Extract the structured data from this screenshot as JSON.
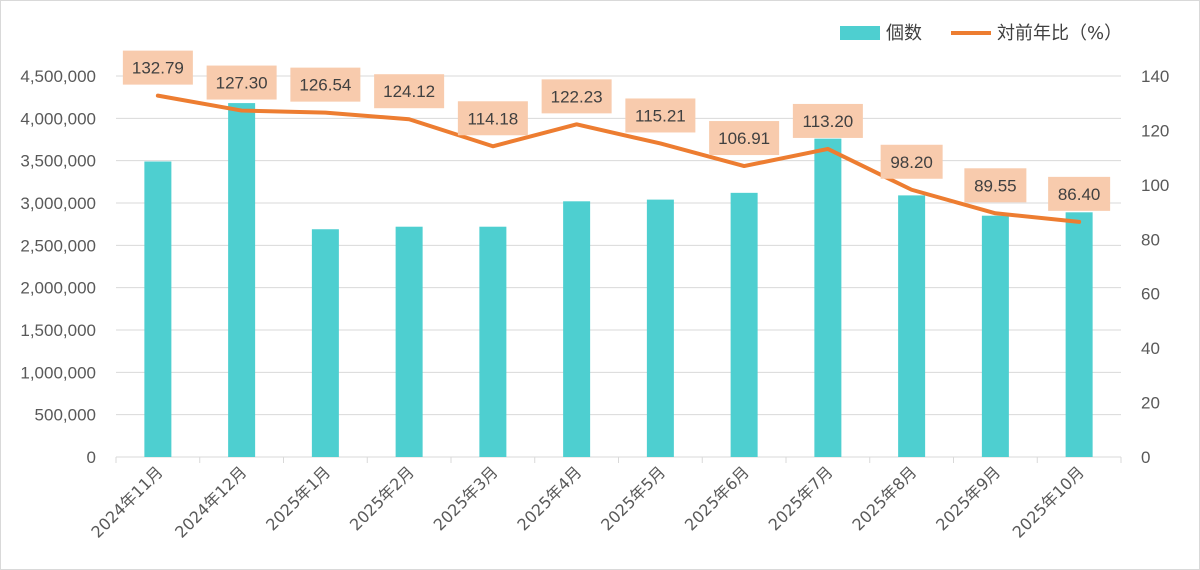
{
  "chart_data": {
    "type": "bar",
    "categories": [
      "2024年11月",
      "2024年12月",
      "2025年1月",
      "2025年2月",
      "2025年3月",
      "2025年4月",
      "2025年5月",
      "2025年6月",
      "2025年7月",
      "2025年8月",
      "2025年9月",
      "2025年10月"
    ],
    "series": [
      {
        "name": "個数",
        "type": "bar",
        "axis": "left",
        "color": "#4ecfd0",
        "values": [
          3490000,
          4180000,
          2690000,
          2720000,
          2720000,
          3020000,
          3040000,
          3120000,
          3760000,
          3090000,
          2850000,
          2890000
        ]
      },
      {
        "name": "対前年比（%）",
        "type": "line",
        "axis": "right",
        "color": "#ed7d31",
        "values": [
          132.79,
          127.3,
          126.54,
          124.12,
          114.18,
          122.23,
          115.21,
          106.91,
          113.2,
          98.2,
          89.55,
          86.4
        ],
        "data_labels": [
          "132.79",
          "127.30",
          "126.54",
          "124.12",
          "114.18",
          "122.23",
          "115.21",
          "106.91",
          "113.20",
          "98.20",
          "89.55",
          "86.40"
        ]
      }
    ],
    "y_left": {
      "min": 0,
      "max": 4500000,
      "ticks": [
        0,
        500000,
        1000000,
        1500000,
        2000000,
        2500000,
        3000000,
        3500000,
        4000000,
        4500000
      ],
      "tick_labels": [
        "0",
        "500,000",
        "1,000,000",
        "1,500,000",
        "2,000,000",
        "2,500,000",
        "3,000,000",
        "3,500,000",
        "4,000,000",
        "4,500,000"
      ]
    },
    "y_right": {
      "min": 0,
      "max": 140,
      "ticks": [
        0,
        20,
        40,
        60,
        80,
        100,
        120,
        140
      ],
      "tick_labels": [
        "0",
        "20",
        "40",
        "60",
        "80",
        "100",
        "120",
        "140"
      ]
    },
    "grid": true,
    "legend_position": "top-right",
    "label_box_color": "#f8cbad",
    "grid_color": "#d9d9d9"
  }
}
